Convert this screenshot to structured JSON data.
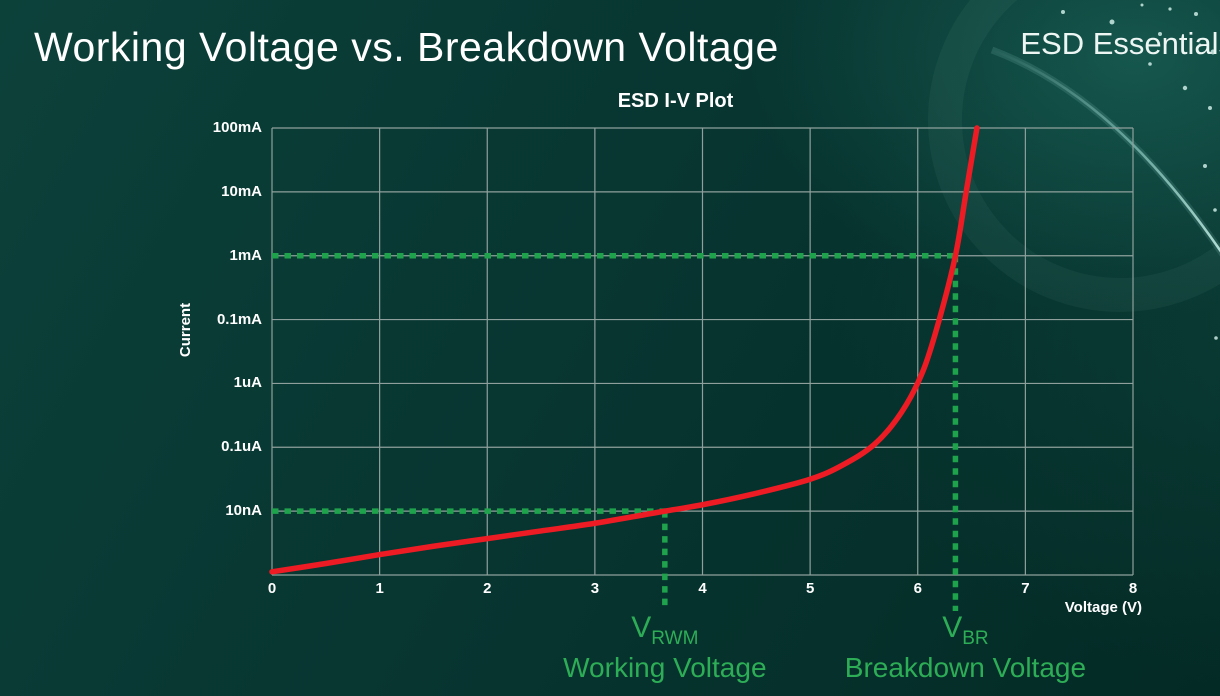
{
  "page": {
    "title": "Working Voltage vs. Breakdown Voltage",
    "brand": "ESD Essentials"
  },
  "chart": {
    "title": "ESD I-V Plot",
    "ylabel": "Current",
    "xlabel": "Voltage (V)",
    "annotations": {
      "vrwm_symbol": "V",
      "vrwm_sub": "RWM",
      "vrwm_caption": "Working Voltage",
      "vbr_symbol": "V",
      "vbr_sub": "BR",
      "vbr_caption": "Breakdown Voltage"
    }
  },
  "chart_data": {
    "type": "line",
    "title": "ESD I-V Plot",
    "xlabel": "Voltage (V)",
    "ylabel": "Current",
    "x_ticks": [
      0,
      1,
      2,
      3,
      4,
      5,
      6,
      7,
      8
    ],
    "xlim": [
      0,
      8
    ],
    "y_scale": "log",
    "y_tick_labels_top_to_bottom": [
      "100mA",
      "10mA",
      "1mA",
      "0.1mA",
      "1uA",
      "0.1uA",
      "10nA"
    ],
    "y_decades_above_baseline": 7,
    "grid": true,
    "series": [
      {
        "name": "ESD I-V curve",
        "color": "#ed1c24",
        "points_voltage_decade": [
          [
            0,
            0.05
          ],
          [
            0.5,
            0.18
          ],
          [
            1,
            0.32
          ],
          [
            1.5,
            0.45
          ],
          [
            2,
            0.57
          ],
          [
            2.5,
            0.69
          ],
          [
            3,
            0.81
          ],
          [
            3.65,
            1.0
          ],
          [
            4,
            1.1
          ],
          [
            4.5,
            1.28
          ],
          [
            5,
            1.5
          ],
          [
            5.3,
            1.72
          ],
          [
            5.6,
            2.05
          ],
          [
            5.85,
            2.55
          ],
          [
            6.05,
            3.2
          ],
          [
            6.2,
            4.0
          ],
          [
            6.35,
            5.0
          ],
          [
            6.45,
            6.0
          ],
          [
            6.55,
            7.0
          ]
        ]
      }
    ],
    "guides": [
      {
        "name": "working-voltage",
        "voltage": 3.65,
        "current": "10nA",
        "current_decade": 1,
        "label": "V_RWM",
        "caption": "Working Voltage"
      },
      {
        "name": "breakdown-voltage",
        "voltage": 6.35,
        "current": "1mA",
        "current_decade": 5,
        "label": "V_BR",
        "caption": "Breakdown Voltage"
      }
    ],
    "colors": {
      "curve": "#ed1c24",
      "guide": "#1fa24c",
      "grid": "#8fa09c",
      "text": "#ffffff",
      "annotation_text": "#2dad56"
    }
  }
}
